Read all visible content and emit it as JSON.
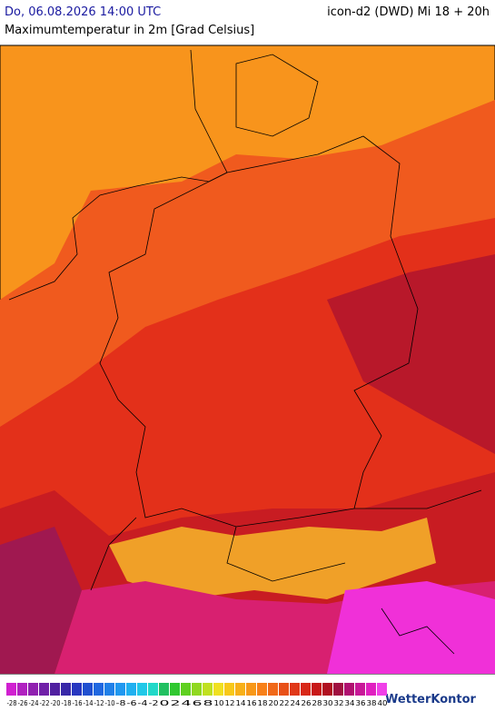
{
  "header": {
    "datetime": "Do, 06.08.2026 14:00 UTC",
    "model": "icon-d2 (DWD) Mi 18 + 20h",
    "title": "Maximumtemperatur in 2m [Grad Celsius]"
  },
  "legend": {
    "ticks": [
      -28,
      -26,
      -24,
      -22,
      -20,
      -18,
      -16,
      -14,
      -12,
      -10,
      -8,
      -6,
      -4,
      -2,
      0,
      2,
      4,
      6,
      8,
      10,
      12,
      14,
      16,
      18,
      20,
      22,
      24,
      26,
      28,
      30,
      32,
      34,
      36,
      38,
      40
    ],
    "colors": [
      "#d020d0",
      "#b020c0",
      "#9020b0",
      "#7020a8",
      "#5020a0",
      "#3828a8",
      "#2838c0",
      "#2050d0",
      "#2068e0",
      "#2080e8",
      "#2098f0",
      "#20b0f0",
      "#20c8e8",
      "#20d8c8",
      "#20c060",
      "#30c830",
      "#60d020",
      "#90d820",
      "#c0e020",
      "#f0e020",
      "#f8c818",
      "#f8b018",
      "#f89818",
      "#f88018",
      "#f06818",
      "#e85018",
      "#e03818",
      "#d82818",
      "#c81818",
      "#b01020",
      "#a01040",
      "#b01070",
      "#c81898",
      "#e020c0",
      "#f040e8"
    ]
  },
  "brand": "WetterKontor"
}
